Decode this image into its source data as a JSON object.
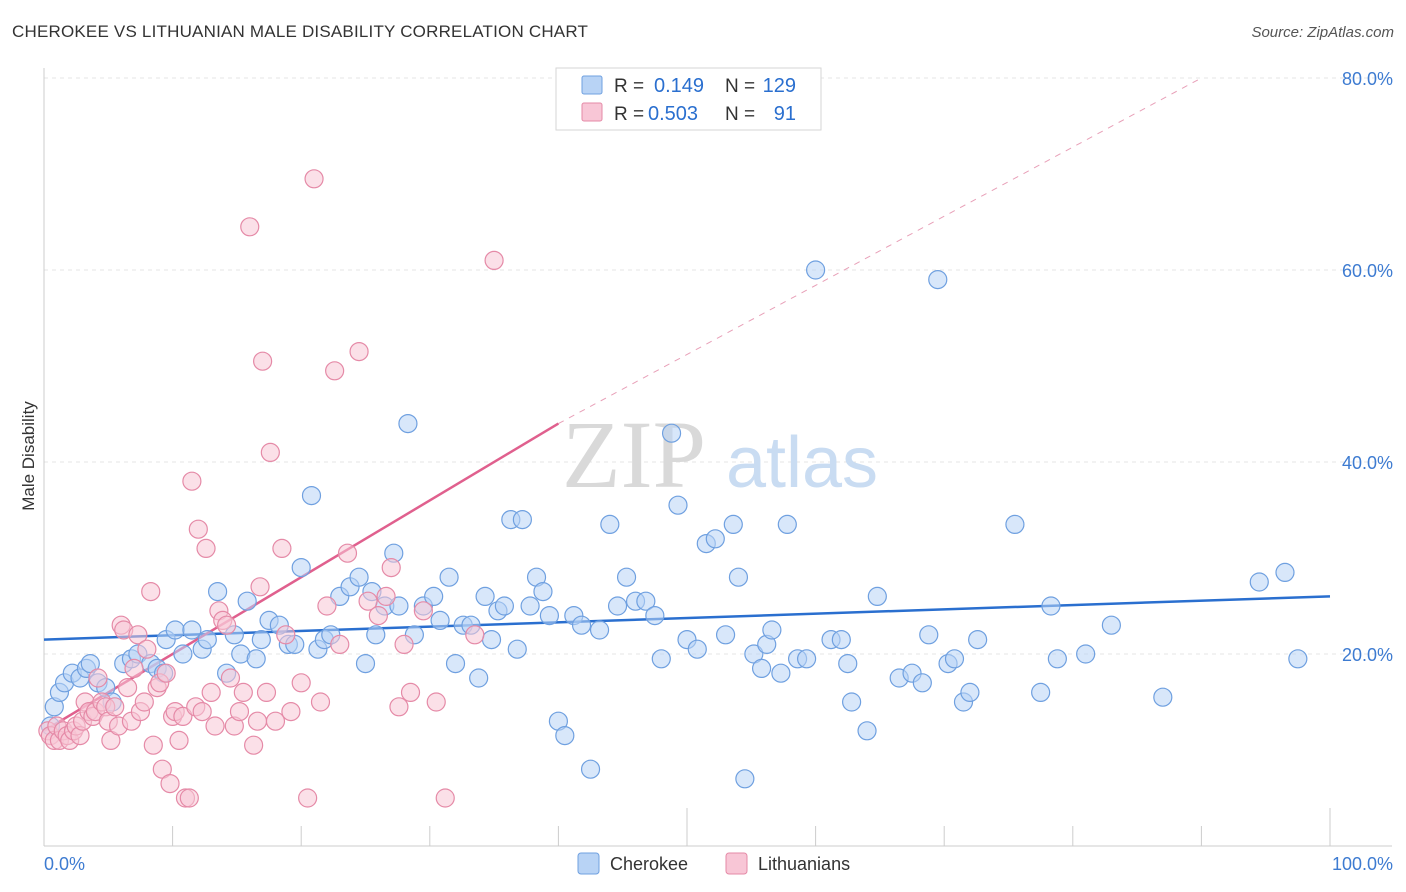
{
  "title": "CHEROKEE VS LITHUANIAN MALE DISABILITY CORRELATION CHART",
  "source": "Source: ZipAtlas.com",
  "watermark": {
    "zip": "ZIP",
    "atlas": "atlas"
  },
  "legend": {
    "rows": [
      {
        "r_label": "R =",
        "r_value": "0.149",
        "n_label": "N =",
        "n_value": "129",
        "color": "#6fa0e0",
        "fill": "#b8d3f5"
      },
      {
        "r_label": "R =",
        "r_value": "0.503",
        "n_label": "N =",
        "n_value": "91",
        "color": "#e58aa7",
        "fill": "#f8c6d6"
      }
    ]
  },
  "bottom_legend": [
    {
      "label": "Cherokee",
      "fill": "#b8d3f5",
      "stroke": "#6fa0e0"
    },
    {
      "label": "Lithuanians",
      "fill": "#f8c6d6",
      "stroke": "#e58aa7"
    }
  ],
  "chart_data": {
    "type": "scatter",
    "title": "CHEROKEE VS LITHUANIAN MALE DISABILITY CORRELATION CHART",
    "xlabel": "",
    "ylabel": "Male Disability",
    "xlim": [
      0,
      100
    ],
    "ylim": [
      0,
      80
    ],
    "x_tick_labels": [
      "0.0%",
      "100.0%"
    ],
    "y_tick_labels": [
      "20.0%",
      "40.0%",
      "60.0%",
      "80.0%"
    ],
    "y_ticks": [
      20,
      40,
      60,
      80
    ],
    "grid": true,
    "legend_position": "top-center",
    "series": [
      {
        "name": "Cherokee",
        "color": "#6fa0e0",
        "fill": "#b8d3f5",
        "trend": {
          "x": [
            0,
            100
          ],
          "y": [
            21.5,
            26.0
          ],
          "color": "#2a6fcf"
        },
        "points": [
          [
            0.5,
            12.5
          ],
          [
            0.8,
            14.5
          ],
          [
            1.2,
            16
          ],
          [
            1.6,
            17
          ],
          [
            2.2,
            18
          ],
          [
            2.8,
            17.5
          ],
          [
            3.3,
            18.5
          ],
          [
            3.6,
            19
          ],
          [
            4.2,
            17
          ],
          [
            4.8,
            16.5
          ],
          [
            5.3,
            15
          ],
          [
            6.2,
            19
          ],
          [
            6.8,
            19.5
          ],
          [
            7.3,
            20
          ],
          [
            8.3,
            19
          ],
          [
            8.8,
            18.5
          ],
          [
            9.3,
            18
          ],
          [
            9.5,
            21.5
          ],
          [
            10.2,
            22.5
          ],
          [
            10.8,
            20
          ],
          [
            11.5,
            22.5
          ],
          [
            12.3,
            20.5
          ],
          [
            12.7,
            21.5
          ],
          [
            13.5,
            26.5
          ],
          [
            14.2,
            18
          ],
          [
            14.8,
            22
          ],
          [
            15.3,
            20
          ],
          [
            15.8,
            25.5
          ],
          [
            16.5,
            19.5
          ],
          [
            16.9,
            21.5
          ],
          [
            17.5,
            23.5
          ],
          [
            18.3,
            23
          ],
          [
            19.0,
            21
          ],
          [
            19.5,
            21
          ],
          [
            20.0,
            29
          ],
          [
            20.8,
            36.5
          ],
          [
            21.3,
            20.5
          ],
          [
            21.8,
            21.5
          ],
          [
            22.3,
            22
          ],
          [
            23.0,
            26
          ],
          [
            23.8,
            27
          ],
          [
            24.5,
            28
          ],
          [
            25.0,
            19
          ],
          [
            25.5,
            26.5
          ],
          [
            25.8,
            22
          ],
          [
            26.5,
            25
          ],
          [
            27.2,
            30.5
          ],
          [
            27.6,
            25
          ],
          [
            28.3,
            44
          ],
          [
            28.8,
            22
          ],
          [
            29.5,
            25
          ],
          [
            30.3,
            26
          ],
          [
            30.8,
            23.5
          ],
          [
            31.5,
            28
          ],
          [
            32.0,
            19
          ],
          [
            32.6,
            23
          ],
          [
            33.2,
            23
          ],
          [
            33.8,
            17.5
          ],
          [
            34.3,
            26
          ],
          [
            34.8,
            21.5
          ],
          [
            35.3,
            24.5
          ],
          [
            35.8,
            25
          ],
          [
            36.3,
            34
          ],
          [
            36.8,
            20.5
          ],
          [
            37.2,
            34
          ],
          [
            37.8,
            25
          ],
          [
            38.3,
            28
          ],
          [
            38.8,
            26.5
          ],
          [
            39.3,
            24
          ],
          [
            40.0,
            13
          ],
          [
            40.5,
            11.5
          ],
          [
            41.2,
            24
          ],
          [
            41.8,
            23
          ],
          [
            42.5,
            8
          ],
          [
            43.2,
            22.5
          ],
          [
            44.0,
            33.5
          ],
          [
            44.6,
            25
          ],
          [
            45.3,
            28
          ],
          [
            46.0,
            25.5
          ],
          [
            46.8,
            25.5
          ],
          [
            47.5,
            24
          ],
          [
            48.0,
            19.5
          ],
          [
            48.8,
            43
          ],
          [
            49.3,
            35.5
          ],
          [
            50.0,
            21.5
          ],
          [
            50.8,
            20.5
          ],
          [
            51.5,
            31.5
          ],
          [
            52.2,
            32
          ],
          [
            53.0,
            22
          ],
          [
            53.6,
            33.5
          ],
          [
            54.0,
            28
          ],
          [
            54.5,
            7
          ],
          [
            55.2,
            20
          ],
          [
            55.8,
            18.5
          ],
          [
            56.2,
            21
          ],
          [
            56.6,
            22.5
          ],
          [
            57.3,
            18
          ],
          [
            57.8,
            33.5
          ],
          [
            58.6,
            19.5
          ],
          [
            59.3,
            19.5
          ],
          [
            60.0,
            60
          ],
          [
            61.2,
            21.5
          ],
          [
            62.0,
            21.5
          ],
          [
            62.5,
            19
          ],
          [
            62.8,
            15
          ],
          [
            64.0,
            12
          ],
          [
            64.8,
            26
          ],
          [
            66.5,
            17.5
          ],
          [
            67.5,
            18
          ],
          [
            68.3,
            17
          ],
          [
            68.8,
            22
          ],
          [
            69.5,
            59
          ],
          [
            70.3,
            19
          ],
          [
            70.8,
            19.5
          ],
          [
            71.5,
            15
          ],
          [
            72.0,
            16
          ],
          [
            72.6,
            21.5
          ],
          [
            75.5,
            33.5
          ],
          [
            77.5,
            16
          ],
          [
            78.3,
            25
          ],
          [
            78.8,
            19.5
          ],
          [
            81.0,
            20
          ],
          [
            83.0,
            23
          ],
          [
            87.0,
            15.5
          ],
          [
            94.5,
            27.5
          ],
          [
            96.5,
            28.5
          ],
          [
            97.5,
            19.5
          ]
        ]
      },
      {
        "name": "Lithuanians",
        "color": "#e58aa7",
        "fill": "#f8c6d6",
        "trend": {
          "x": [
            0,
            40
          ],
          "y": [
            12.0,
            44.0
          ],
          "color": "#e0608e",
          "extended_to": [
            90,
            80
          ]
        },
        "points": [
          [
            0.3,
            12
          ],
          [
            0.5,
            11.5
          ],
          [
            0.8,
            11
          ],
          [
            1.0,
            12.5
          ],
          [
            1.2,
            11
          ],
          [
            1.5,
            12
          ],
          [
            1.8,
            11.5
          ],
          [
            2.0,
            11
          ],
          [
            2.3,
            12
          ],
          [
            2.5,
            12.5
          ],
          [
            2.8,
            11.5
          ],
          [
            3.0,
            13
          ],
          [
            3.2,
            15
          ],
          [
            3.5,
            14
          ],
          [
            3.8,
            13.5
          ],
          [
            4.0,
            14
          ],
          [
            4.2,
            17.5
          ],
          [
            4.5,
            15
          ],
          [
            4.8,
            14.5
          ],
          [
            5.0,
            13
          ],
          [
            5.2,
            11
          ],
          [
            5.5,
            14.5
          ],
          [
            5.8,
            12.5
          ],
          [
            6.0,
            23
          ],
          [
            6.2,
            22.5
          ],
          [
            6.5,
            16.5
          ],
          [
            6.8,
            13
          ],
          [
            7.0,
            18.5
          ],
          [
            7.3,
            22
          ],
          [
            7.5,
            14
          ],
          [
            7.8,
            15
          ],
          [
            8.0,
            20.5
          ],
          [
            8.3,
            26.5
          ],
          [
            8.5,
            10.5
          ],
          [
            8.8,
            16.5
          ],
          [
            9.0,
            17
          ],
          [
            9.2,
            8
          ],
          [
            9.5,
            18
          ],
          [
            9.8,
            6.5
          ],
          [
            10.0,
            13.5
          ],
          [
            10.2,
            14
          ],
          [
            10.5,
            11
          ],
          [
            10.8,
            13.5
          ],
          [
            11.0,
            5
          ],
          [
            11.3,
            5
          ],
          [
            11.5,
            38
          ],
          [
            11.8,
            14.5
          ],
          [
            12.0,
            33
          ],
          [
            12.3,
            14
          ],
          [
            12.6,
            31
          ],
          [
            13.0,
            16
          ],
          [
            13.3,
            12.5
          ],
          [
            13.6,
            24.5
          ],
          [
            13.9,
            23.5
          ],
          [
            14.2,
            23
          ],
          [
            14.5,
            17.5
          ],
          [
            14.8,
            12.5
          ],
          [
            15.2,
            14
          ],
          [
            15.5,
            16
          ],
          [
            16.0,
            64.5
          ],
          [
            16.3,
            10.5
          ],
          [
            16.6,
            13
          ],
          [
            16.8,
            27
          ],
          [
            17.0,
            50.5
          ],
          [
            17.3,
            16
          ],
          [
            17.6,
            41
          ],
          [
            18.0,
            13
          ],
          [
            18.5,
            31
          ],
          [
            18.8,
            22
          ],
          [
            19.2,
            14
          ],
          [
            20.0,
            17
          ],
          [
            20.5,
            5
          ],
          [
            21.0,
            69.5
          ],
          [
            21.5,
            15
          ],
          [
            22.0,
            25
          ],
          [
            22.6,
            49.5
          ],
          [
            23.0,
            21
          ],
          [
            23.6,
            30.5
          ],
          [
            24.5,
            51.5
          ],
          [
            25.2,
            25.5
          ],
          [
            26.0,
            24
          ],
          [
            26.6,
            26
          ],
          [
            27.0,
            29
          ],
          [
            27.6,
            14.5
          ],
          [
            28.0,
            21
          ],
          [
            28.5,
            16
          ],
          [
            29.5,
            24.5
          ],
          [
            30.5,
            15
          ],
          [
            31.2,
            5
          ],
          [
            33.5,
            22
          ],
          [
            35.0,
            61
          ]
        ]
      }
    ]
  }
}
